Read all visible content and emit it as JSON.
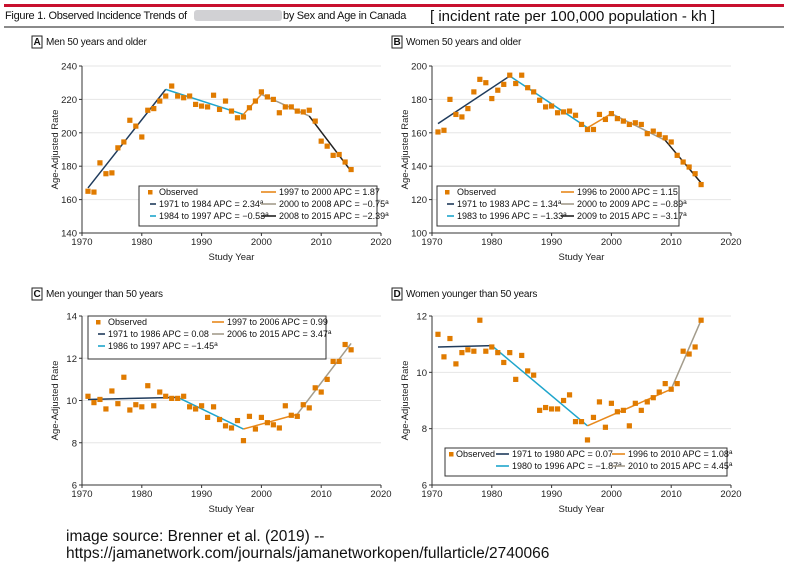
{
  "header": {
    "title_start": "Figure 1. Observed Incidence Trends of",
    "title_end": "by Sex and Age in Canada",
    "annotation": "[ incident rate per 100,000 population - kh ]",
    "accent_color": "#c8102e"
  },
  "source": {
    "line1": "image source: Brenner et al. (2019) --",
    "line2": "https://jamanetwork.com/journals/jamanetworkopen/fullarticle/2740066"
  },
  "chart_data": [
    {
      "type": "scatter+line",
      "panel": "A",
      "title": "Men 50 years and older",
      "xlabel": "Study Year",
      "ylabel": "Age-Adjusted Rate",
      "xlim": [
        1970,
        2020
      ],
      "ylim": [
        140,
        240
      ],
      "xticks": [
        1970,
        1980,
        1990,
        2000,
        2010,
        2020
      ],
      "yticks": [
        140,
        160,
        180,
        200,
        220,
        240
      ],
      "grid": true,
      "legend_placement": "bottom-right",
      "observed": {
        "name": "Observed",
        "color": "#e07b00",
        "x": [
          1971,
          1972,
          1973,
          1974,
          1975,
          1976,
          1977,
          1978,
          1979,
          1980,
          1981,
          1982,
          1983,
          1984,
          1985,
          1986,
          1987,
          1988,
          1989,
          1990,
          1991,
          1992,
          1993,
          1994,
          1995,
          1996,
          1997,
          1998,
          1999,
          2000,
          2001,
          2002,
          2003,
          2004,
          2005,
          2006,
          2007,
          2008,
          2009,
          2010,
          2011,
          2012,
          2013,
          2014,
          2015
        ],
        "y": [
          165,
          164.5,
          182,
          175.5,
          176,
          191,
          194.5,
          207.5,
          204,
          197.5,
          213.5,
          214.5,
          219,
          222,
          228,
          222,
          221,
          222,
          217,
          216,
          215.5,
          222.5,
          214,
          219,
          213,
          209,
          209.5,
          215,
          219,
          224.5,
          221.5,
          220,
          212,
          215.5,
          215.5,
          213,
          212.5,
          213.5,
          207,
          195,
          192,
          186.5,
          187,
          182.5,
          178
        ]
      },
      "segments": [
        {
          "name": "1971 to 1984 APC = 2.34",
          "sup": "a",
          "color": "#1f3b5c",
          "x": [
            1971,
            1984
          ],
          "y": [
            167,
            226
          ]
        },
        {
          "name": "1984 to 1997 APC = −0.53",
          "sup": "a",
          "color": "#1ea5cc",
          "x": [
            1984,
            1997
          ],
          "y": [
            226,
            211
          ]
        },
        {
          "name": "1997 to 2000 APC = 1.87",
          "sup": "",
          "color": "#e8891c",
          "x": [
            1997,
            2000
          ],
          "y": [
            211,
            223
          ]
        },
        {
          "name": "2000 to 2008 APC = −0.75",
          "sup": "a",
          "color": "#a39c8c",
          "x": [
            2000,
            2008
          ],
          "y": [
            223,
            210
          ]
        },
        {
          "name": "2008 to 2015 APC = −2.39",
          "sup": "a",
          "color": "#222222",
          "x": [
            2008,
            2015
          ],
          "y": [
            210,
            177
          ]
        }
      ]
    },
    {
      "type": "scatter+line",
      "panel": "B",
      "title": "Women 50 years and older",
      "xlabel": "Study Year",
      "ylabel": "Age-Adjusted Rate",
      "xlim": [
        1970,
        2020
      ],
      "ylim": [
        100,
        200
      ],
      "xticks": [
        1970,
        1980,
        1990,
        2000,
        2010,
        2020
      ],
      "yticks": [
        100,
        120,
        140,
        160,
        180,
        200
      ],
      "grid": true,
      "legend_placement": "bottom-left",
      "observed": {
        "name": "Observed",
        "color": "#e07b00",
        "x": [
          1971,
          1972,
          1973,
          1974,
          1975,
          1976,
          1977,
          1978,
          1979,
          1980,
          1981,
          1982,
          1983,
          1984,
          1985,
          1986,
          1987,
          1988,
          1989,
          1990,
          1991,
          1992,
          1993,
          1994,
          1995,
          1996,
          1997,
          1998,
          1999,
          2000,
          2001,
          2002,
          2003,
          2004,
          2005,
          2006,
          2007,
          2008,
          2009,
          2010,
          2011,
          2012,
          2013,
          2014,
          2015
        ],
        "y": [
          160.5,
          161.5,
          180,
          171,
          169.5,
          174.5,
          184.5,
          192,
          190,
          180.5,
          185.5,
          189,
          194.5,
          189.5,
          194.5,
          187,
          184.5,
          179.5,
          175.5,
          176,
          172,
          172.5,
          173,
          170.5,
          165,
          162,
          162,
          171,
          168,
          171.5,
          168.5,
          167,
          165,
          166,
          165,
          159.5,
          161,
          159,
          157,
          154.5,
          146.5,
          142.5,
          139.5,
          135.5,
          129
        ]
      },
      "segments": [
        {
          "name": "1971 to 1983 APC = 1.34",
          "sup": "a",
          "color": "#1f3b5c",
          "x": [
            1971,
            1983
          ],
          "y": [
            165.5,
            194
          ]
        },
        {
          "name": "1983 to 1996 APC = −1.33",
          "sup": "a",
          "color": "#1ea5cc",
          "x": [
            1983,
            1996
          ],
          "y": [
            194,
            163
          ]
        },
        {
          "name": "1996 to 2000 APC = 1.15",
          "sup": "",
          "color": "#e8891c",
          "x": [
            1996,
            2000
          ],
          "y": [
            163,
            171.5
          ]
        },
        {
          "name": "2000 to 2009 APC = −0.89",
          "sup": "a",
          "color": "#a39c8c",
          "x": [
            2000,
            2009
          ],
          "y": [
            171.5,
            155.5
          ]
        },
        {
          "name": "2009 to 2015 APC = −3.17",
          "sup": "a",
          "color": "#222222",
          "x": [
            2009,
            2015
          ],
          "y": [
            155.5,
            130
          ]
        }
      ]
    },
    {
      "type": "scatter+line",
      "panel": "C",
      "title": "Men younger than 50 years",
      "xlabel": "Study Year",
      "ylabel": "Age-Adjusted Rate",
      "xlim": [
        1970,
        2020
      ],
      "ylim": [
        6,
        14
      ],
      "xticks": [
        1970,
        1980,
        1990,
        2000,
        2010,
        2020
      ],
      "yticks": [
        6,
        8,
        10,
        12,
        14
      ],
      "grid": true,
      "legend_placement": "top-left",
      "observed": {
        "name": "Observed",
        "color": "#e07b00",
        "x": [
          1971,
          1972,
          1973,
          1974,
          1975,
          1976,
          1977,
          1978,
          1979,
          1980,
          1981,
          1982,
          1983,
          1984,
          1985,
          1986,
          1987,
          1988,
          1989,
          1990,
          1991,
          1992,
          1993,
          1994,
          1995,
          1996,
          1997,
          1998,
          1999,
          2000,
          2001,
          2002,
          2003,
          2004,
          2005,
          2006,
          2007,
          2008,
          2009,
          2010,
          2011,
          2012,
          2013,
          2014,
          2015
        ],
        "y": [
          10.2,
          9.9,
          10.05,
          9.6,
          10.45,
          9.85,
          11.1,
          9.55,
          9.8,
          9.7,
          10.7,
          9.75,
          10.4,
          10.2,
          10.1,
          10.1,
          10.2,
          9.7,
          9.6,
          9.75,
          9.2,
          9.7,
          9.1,
          8.8,
          8.7,
          9.05,
          8.1,
          9.25,
          8.65,
          9.2,
          8.95,
          8.85,
          8.7,
          9.75,
          9.3,
          9.25,
          9.8,
          9.65,
          10.6,
          10.4,
          11.0,
          11.85,
          11.85,
          12.65,
          12.4
        ]
      },
      "segments": [
        {
          "name": "1971 to 1986 APC = 0.08",
          "sup": "",
          "color": "#1f3b5c",
          "x": [
            1971,
            1986
          ],
          "y": [
            10.05,
            10.15
          ]
        },
        {
          "name": "1986 to 1997 APC = −1.45",
          "sup": "a",
          "color": "#1ea5cc",
          "x": [
            1986,
            1997
          ],
          "y": [
            10.15,
            8.65
          ]
        },
        {
          "name": "1997 to 2006 APC = 0.99",
          "sup": "",
          "color": "#e8891c",
          "x": [
            1997,
            2006
          ],
          "y": [
            8.65,
            9.35
          ]
        },
        {
          "name": "2006 to 2015 APC = 3.47",
          "sup": "a",
          "color": "#a39c8c",
          "x": [
            2006,
            2015
          ],
          "y": [
            9.35,
            12.7
          ]
        }
      ]
    },
    {
      "type": "scatter+line",
      "panel": "D",
      "title": "Women younger than 50 years",
      "xlabel": "Study Year",
      "ylabel": "Age-Adjusted Rate",
      "xlim": [
        1970,
        2020
      ],
      "ylim": [
        6,
        12
      ],
      "xticks": [
        1970,
        1980,
        1990,
        2000,
        2010,
        2020
      ],
      "yticks": [
        6,
        8,
        10,
        12
      ],
      "grid": true,
      "legend_placement": "bottom",
      "observed": {
        "name": "Observed",
        "color": "#e07b00",
        "x": [
          1971,
          1972,
          1973,
          1974,
          1975,
          1976,
          1977,
          1978,
          1979,
          1980,
          1981,
          1982,
          1983,
          1984,
          1985,
          1986,
          1987,
          1988,
          1989,
          1990,
          1991,
          1992,
          1993,
          1994,
          1995,
          1996,
          1997,
          1998,
          1999,
          2000,
          2001,
          2002,
          2003,
          2004,
          2005,
          2006,
          2007,
          2008,
          2009,
          2010,
          2011,
          2012,
          2013,
          2014,
          2015
        ],
        "y": [
          11.35,
          10.55,
          11.2,
          10.3,
          10.7,
          10.8,
          10.75,
          11.85,
          10.75,
          10.9,
          10.7,
          10.35,
          10.7,
          9.75,
          10.6,
          10.05,
          9.9,
          8.65,
          8.75,
          8.7,
          8.7,
          9.0,
          9.2,
          8.25,
          8.25,
          7.6,
          8.4,
          8.95,
          8.05,
          8.9,
          8.6,
          8.65,
          8.1,
          8.9,
          8.65,
          8.95,
          9.1,
          9.3,
          9.6,
          9.4,
          9.6,
          10.75,
          10.65,
          10.9,
          11.85
        ]
      },
      "segments": [
        {
          "name": "1971 to 1980 APC = 0.07",
          "sup": "",
          "color": "#1f3b5c",
          "x": [
            1971,
            1980
          ],
          "y": [
            10.9,
            10.95
          ]
        },
        {
          "name": "1980 to 1996 APC = −1.87",
          "sup": "a",
          "color": "#1ea5cc",
          "x": [
            1980,
            1996
          ],
          "y": [
            10.95,
            8.1
          ]
        },
        {
          "name": "1996 to 2010 APC = 1.08",
          "sup": "a",
          "color": "#e8891c",
          "x": [
            1996,
            2010
          ],
          "y": [
            8.1,
            9.4
          ]
        },
        {
          "name": "2010 to 2015 APC = 4.45",
          "sup": "a",
          "color": "#a39c8c",
          "x": [
            2010,
            2015
          ],
          "y": [
            9.4,
            11.85
          ]
        }
      ]
    }
  ]
}
